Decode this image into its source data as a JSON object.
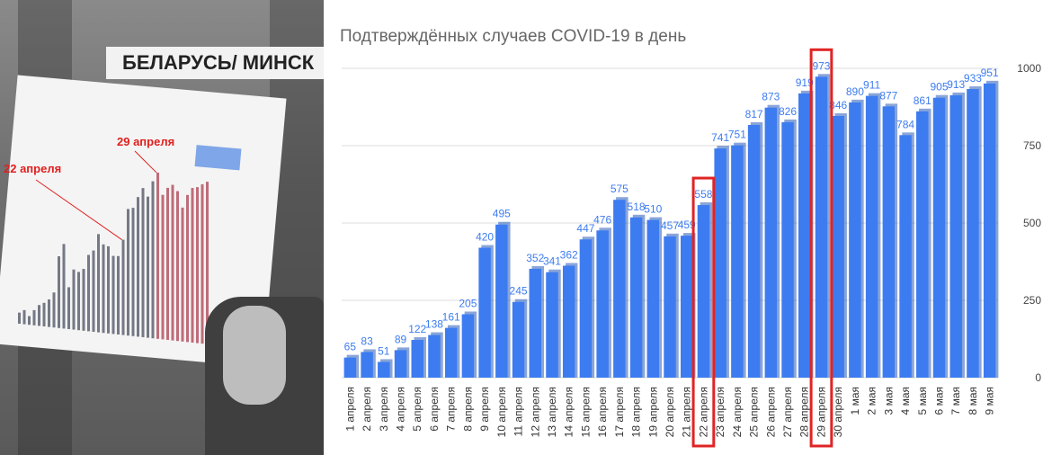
{
  "photo": {
    "banner": "БЕЛАРУСЬ/ МИНСК",
    "label_left": "22 апреля",
    "label_right": "29 апреля"
  },
  "colors": {
    "bar": "#3d7cf0",
    "bar_label": "#3d7cf0",
    "highlight": "#e02424",
    "grid": "#dddddd",
    "text": "#444444"
  },
  "chart_data": {
    "type": "bar",
    "title": "Подтверждённых случаев COVID-19 в день",
    "xlabel": "",
    "ylabel": "",
    "ylim": [
      0,
      1000
    ],
    "yticks": [
      0,
      250,
      500,
      750,
      1000
    ],
    "y_axis_side": "right",
    "grid": true,
    "categories": [
      "1 апреля",
      "2 апреля",
      "3 апреля",
      "4 апреля",
      "5 апреля",
      "6 апреля",
      "7 апреля",
      "8 апреля",
      "9 апреля",
      "10 апреля",
      "11 апреля",
      "12 апреля",
      "13 апреля",
      "14 апреля",
      "15 апреля",
      "16 апреля",
      "17 апреля",
      "18 апреля",
      "19 апреля",
      "20 апреля",
      "21 апреля",
      "22 апреля",
      "23 апреля",
      "24 апреля",
      "25 апреля",
      "26 апреля",
      "27 апреля",
      "28 апреля",
      "29 апреля",
      "30 апреля",
      "1 мая",
      "2 мая",
      "3 мая",
      "4 мая",
      "5 мая",
      "6 мая",
      "7 мая",
      "8 мая",
      "9 мая"
    ],
    "values": [
      65,
      83,
      51,
      89,
      122,
      138,
      161,
      205,
      420,
      495,
      245,
      352,
      341,
      362,
      447,
      476,
      575,
      518,
      510,
      457,
      459,
      558,
      741,
      751,
      817,
      873,
      826,
      919,
      973,
      846,
      890,
      911,
      877,
      784,
      861,
      905,
      913,
      933,
      951
    ],
    "highlighted": [
      "22 апреля",
      "29 апреля"
    ]
  }
}
